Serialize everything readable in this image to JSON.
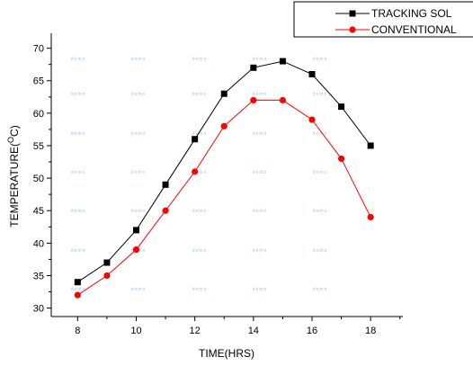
{
  "chart_data": {
    "type": "line",
    "xlabel": "TIME(HRS)",
    "ylabel_main": "TEMPERATURE(",
    "ylabel_sup": "O",
    "ylabel_tail": "C)",
    "xlim": [
      7.1,
      19.1
    ],
    "ylim": [
      28.7,
      72.3
    ],
    "xticks": [
      8,
      10,
      12,
      14,
      16,
      18
    ],
    "yticks": [
      30,
      35,
      40,
      45,
      50,
      55,
      60,
      65,
      70
    ],
    "x": [
      8,
      9,
      10,
      11,
      12,
      13,
      14,
      15,
      16,
      17,
      18
    ],
    "series": [
      {
        "name": "TRACKING SOL",
        "color": "#000000",
        "marker": "square",
        "values": [
          34,
          37,
          42,
          49,
          56,
          63,
          67,
          68,
          66,
          61,
          55
        ]
      },
      {
        "name": "CONVENTIONAL",
        "color": "#ff0000",
        "marker": "circle",
        "values": [
          32,
          35,
          39,
          45,
          51,
          58,
          62,
          62,
          59,
          53,
          44
        ]
      }
    ],
    "legend_position": "top-right",
    "grid": false,
    "watermark_text": "demo"
  }
}
